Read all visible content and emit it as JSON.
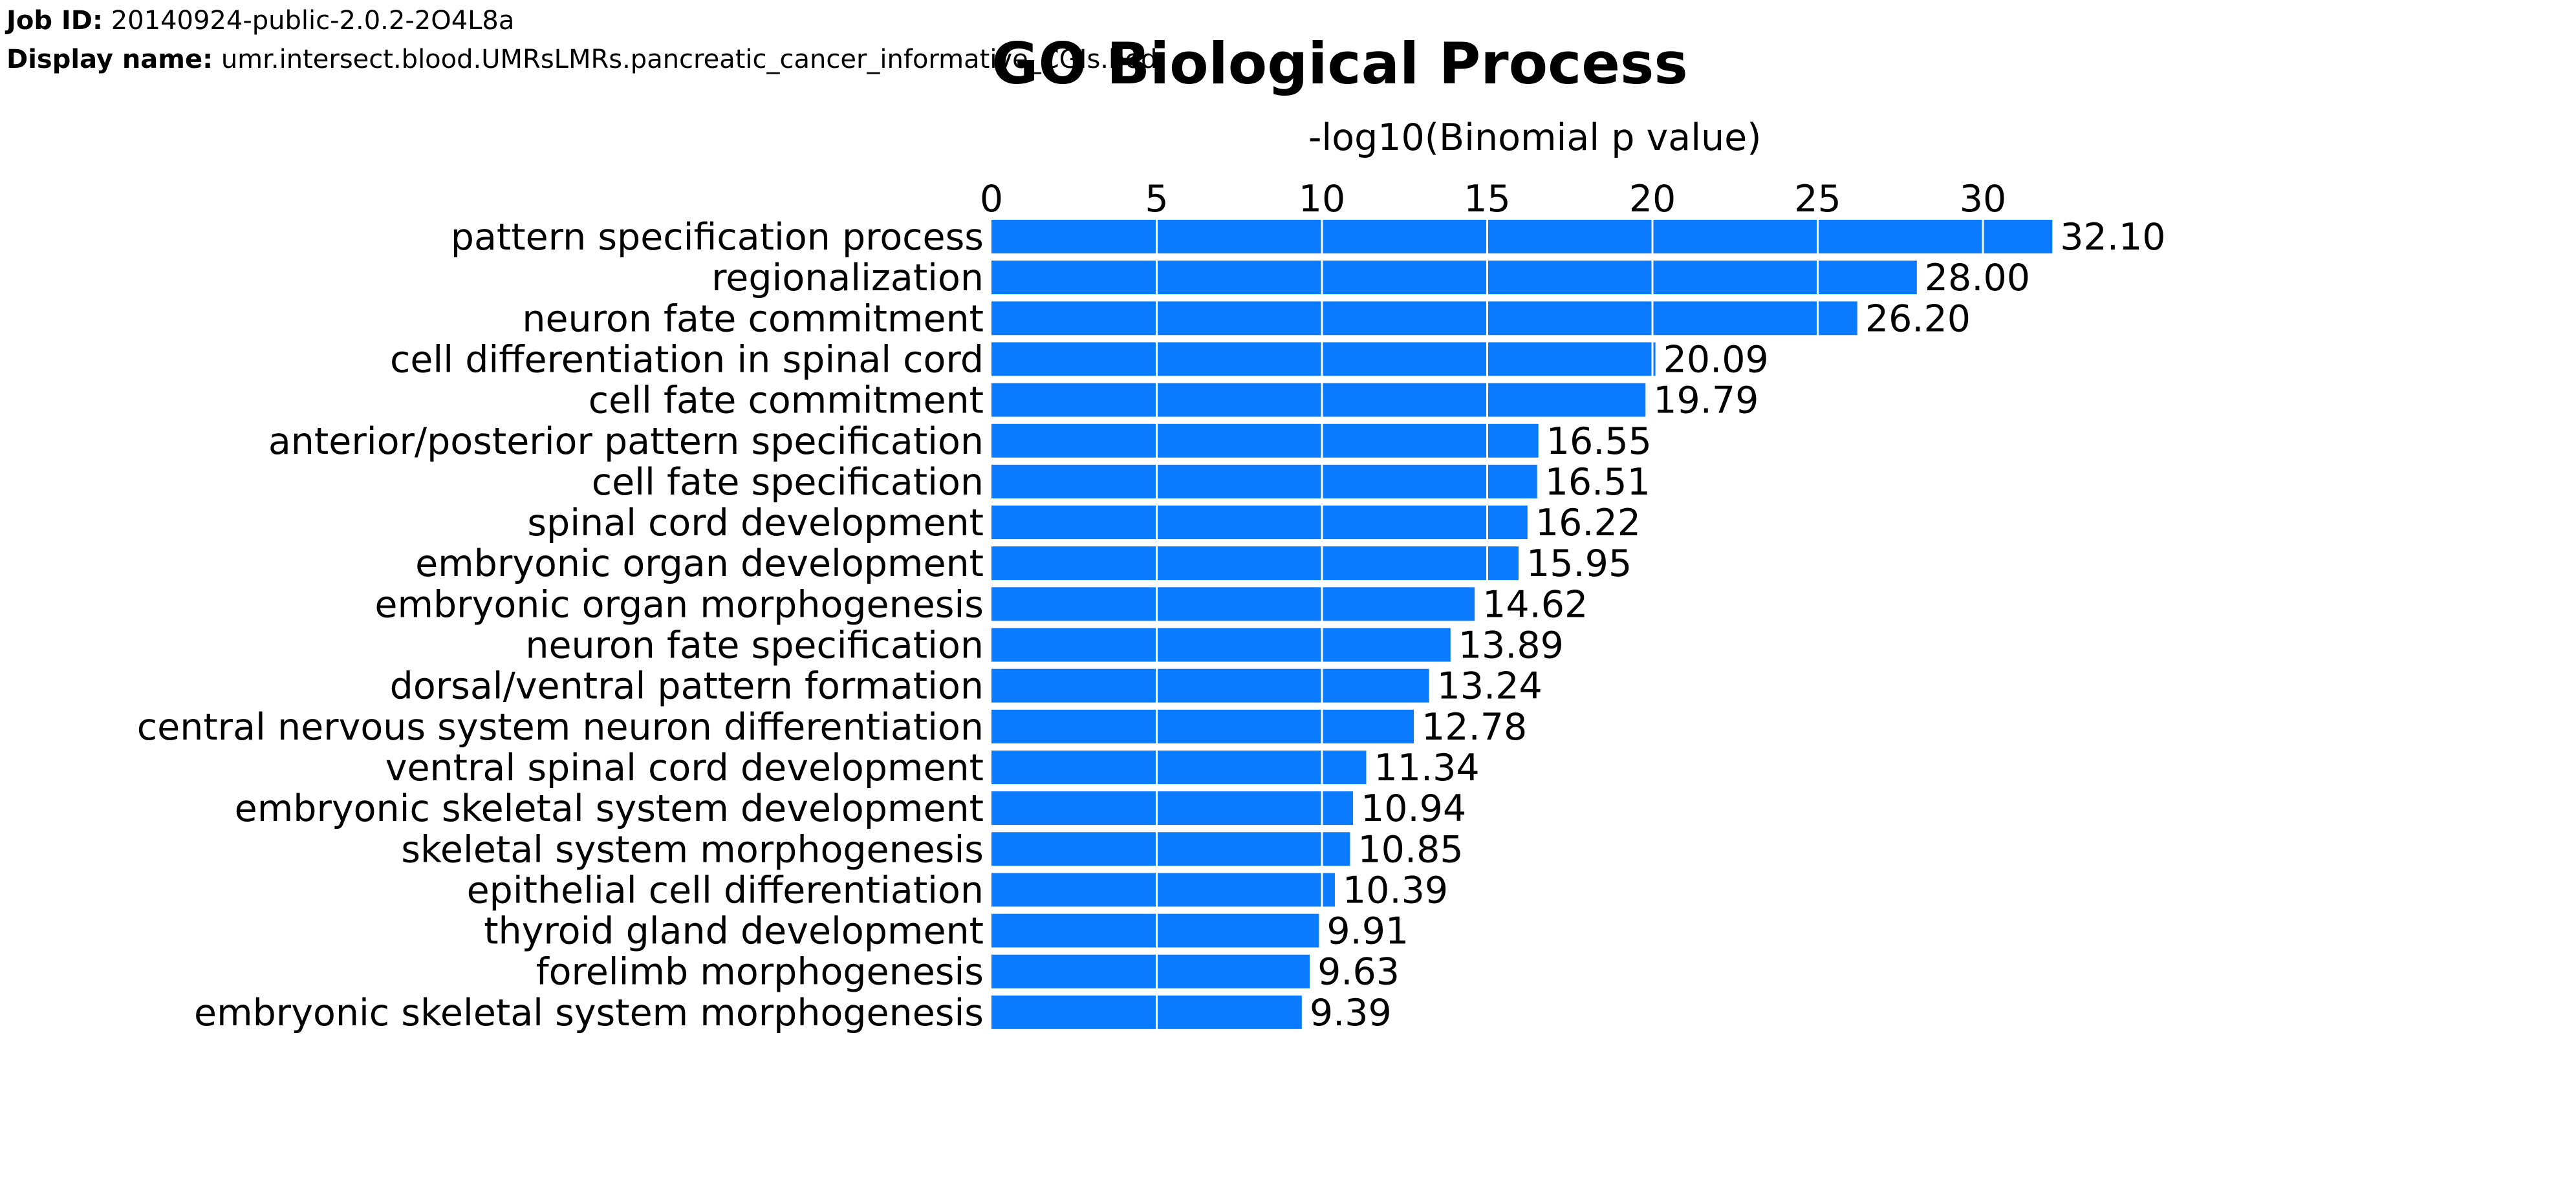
{
  "header": {
    "job_id_label": "Job ID:",
    "job_id_value": "20140924-public-2.0.2-2O4L8a",
    "display_name_label": "Display name:",
    "display_name_value": "umr.intersect.blood.UMRsLMRs.pancreatic_cancer_informative_CGIs.bed"
  },
  "colors": {
    "bar": "#0a7bff",
    "grid": "#ffffff",
    "text": "#000000"
  },
  "chart_data": {
    "type": "bar",
    "orientation": "horizontal",
    "title": "GO Biological Process",
    "xlabel": "-log10(Binomial p value)",
    "ylabel": "",
    "xlim": [
      0,
      32.1
    ],
    "xticks": [
      0,
      5,
      10,
      15,
      20,
      25,
      30
    ],
    "xtick_labels": [
      "0",
      "5",
      "10",
      "15",
      "20",
      "25",
      "30"
    ],
    "axis_position": "top",
    "grid": true,
    "categories": [
      "pattern specification process",
      "regionalization",
      "neuron fate commitment",
      "cell differentiation in spinal cord",
      "cell fate commitment",
      "anterior/posterior pattern specification",
      "cell fate specification",
      "spinal cord development",
      "embryonic organ development",
      "embryonic organ morphogenesis",
      "neuron fate specification",
      "dorsal/ventral pattern formation",
      "central nervous system neuron differentiation",
      "ventral spinal cord development",
      "embryonic skeletal system development",
      "skeletal system morphogenesis",
      "epithelial cell differentiation",
      "thyroid gland development",
      "forelimb morphogenesis",
      "embryonic skeletal system morphogenesis"
    ],
    "values": [
      32.1,
      28.0,
      26.2,
      20.09,
      19.79,
      16.55,
      16.51,
      16.22,
      15.95,
      14.62,
      13.89,
      13.24,
      12.78,
      11.34,
      10.94,
      10.85,
      10.39,
      9.91,
      9.63,
      9.39
    ],
    "value_labels": [
      "32.10",
      "28.00",
      "26.20",
      "20.09",
      "19.79",
      "16.55",
      "16.51",
      "16.22",
      "15.95",
      "14.62",
      "13.89",
      "13.24",
      "12.78",
      "11.34",
      "10.94",
      "10.85",
      "10.39",
      "9.91",
      "9.63",
      "9.39"
    ]
  }
}
